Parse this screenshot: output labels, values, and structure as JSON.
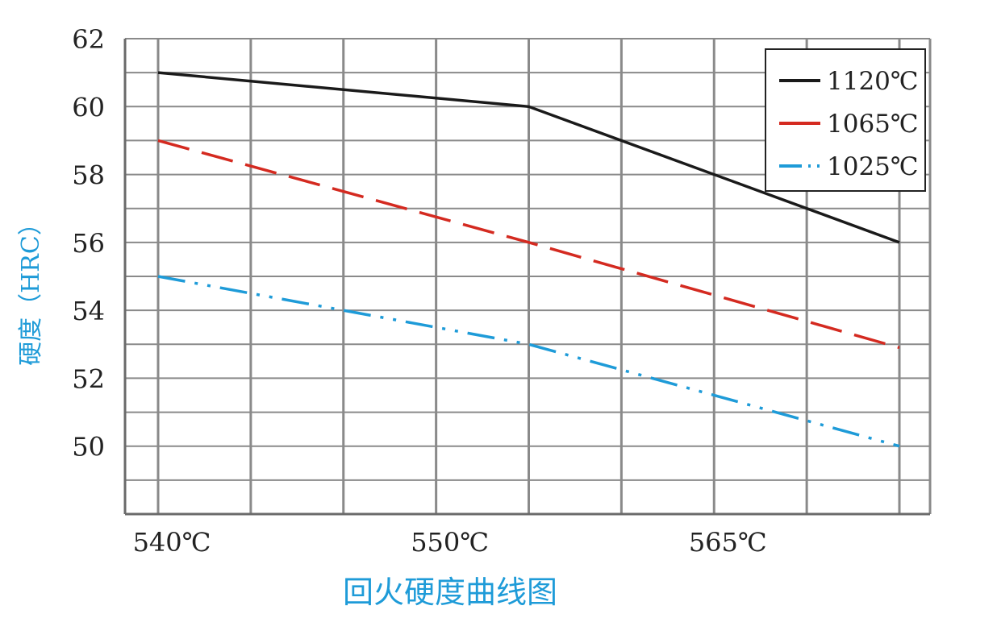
{
  "chart_data": {
    "type": "line",
    "title": "回火硬度曲线图",
    "xlabel": "",
    "ylabel": "硬度（HRC）",
    "x": [
      0,
      4,
      8
    ],
    "x_ticks": [
      {
        "x": 0,
        "label": "540℃"
      },
      {
        "x": 3,
        "label": "550℃"
      },
      {
        "x": 6,
        "label": "565℃"
      }
    ],
    "ylim": [
      48,
      62
    ],
    "y_ticks": [
      50,
      52,
      54,
      56,
      58,
      60,
      62
    ],
    "grid": true,
    "legend_position": "top-right",
    "series": [
      {
        "name": "1120℃",
        "values": [
          61,
          60,
          56
        ],
        "color": "#1a1a1a",
        "style": "solid"
      },
      {
        "name": "1065℃",
        "values": [
          59,
          56,
          52.9
        ],
        "color": "#d42a20",
        "style": "dashed"
      },
      {
        "name": "1025℃",
        "values": [
          55,
          53,
          50
        ],
        "color": "#1e9bd8",
        "style": "dash-dot-dot"
      }
    ],
    "title_color": "#1e9bd8",
    "ylabel_color": "#1e9bd8"
  }
}
